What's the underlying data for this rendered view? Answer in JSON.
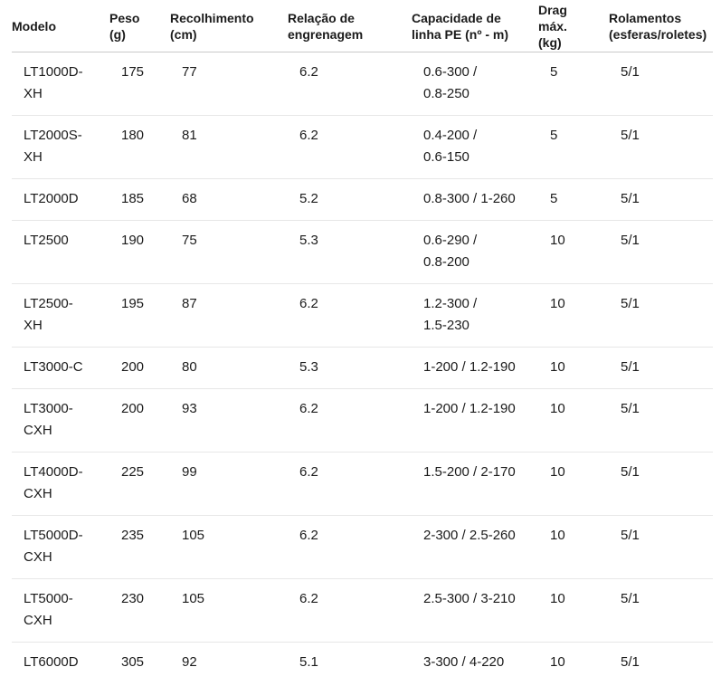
{
  "table": {
    "columns": [
      {
        "key": "modelo",
        "label": "Modelo"
      },
      {
        "key": "peso",
        "label": "Peso\n(g)"
      },
      {
        "key": "recolhimento",
        "label": "Recolhimento\n(cm)"
      },
      {
        "key": "relacao",
        "label": "Relação de\nengrenagem"
      },
      {
        "key": "capacidade",
        "label": "Capacidade de\nlinha PE (nº - m)"
      },
      {
        "key": "drag",
        "label": "Drag\nmáx.\n(kg)"
      },
      {
        "key": "rolamentos",
        "label": "Rolamentos\n(esferas/roletes)"
      }
    ],
    "rows": [
      {
        "modelo": "LT1000D-\nXH",
        "peso": "175",
        "recolhimento": "77",
        "relacao": "6.2",
        "capacidade": "0.6-300 /\n0.8-250",
        "drag": "5",
        "rolamentos": "5/1"
      },
      {
        "modelo": "LT2000S-\nXH",
        "peso": "180",
        "recolhimento": "81",
        "relacao": "6.2",
        "capacidade": "0.4-200 /\n0.6-150",
        "drag": "5",
        "rolamentos": "5/1"
      },
      {
        "modelo": "LT2000D",
        "peso": "185",
        "recolhimento": "68",
        "relacao": "5.2",
        "capacidade": "0.8-300 / 1-260",
        "drag": "5",
        "rolamentos": "5/1"
      },
      {
        "modelo": "LT2500",
        "peso": "190",
        "recolhimento": "75",
        "relacao": "5.3",
        "capacidade": "0.6-290 /\n0.8-200",
        "drag": "10",
        "rolamentos": "5/1"
      },
      {
        "modelo": "LT2500-\nXH",
        "peso": "195",
        "recolhimento": "87",
        "relacao": "6.2",
        "capacidade": "1.2-300 /\n1.5-230",
        "drag": "10",
        "rolamentos": "5/1"
      },
      {
        "modelo": "LT3000-C",
        "peso": "200",
        "recolhimento": "80",
        "relacao": "5.3",
        "capacidade": "1-200 / 1.2-190",
        "drag": "10",
        "rolamentos": "5/1"
      },
      {
        "modelo": "LT3000-\nCXH",
        "peso": "200",
        "recolhimento": "93",
        "relacao": "6.2",
        "capacidade": "1-200 / 1.2-190",
        "drag": "10",
        "rolamentos": "5/1"
      },
      {
        "modelo": "LT4000D-\nCXH",
        "peso": "225",
        "recolhimento": "99",
        "relacao": "6.2",
        "capacidade": "1.5-200 / 2-170",
        "drag": "10",
        "rolamentos": "5/1"
      },
      {
        "modelo": "LT5000D-\nCXH",
        "peso": "235",
        "recolhimento": "105",
        "relacao": "6.2",
        "capacidade": "2-300 / 2.5-260",
        "drag": "10",
        "rolamentos": "5/1"
      },
      {
        "modelo": "LT5000-\nCXH",
        "peso": "230",
        "recolhimento": "105",
        "relacao": "6.2",
        "capacidade": "2.5-300 / 3-210",
        "drag": "10",
        "rolamentos": "5/1"
      },
      {
        "modelo": "LT6000D",
        "peso": "305",
        "recolhimento": "92",
        "relacao": "5.1",
        "capacidade": "3-300 / 4-220",
        "drag": "10",
        "rolamentos": "5/1"
      }
    ]
  },
  "colors": {
    "background": "#ffffff",
    "text": "#1b1b1b",
    "header_divider": "#c9c9c9",
    "row_divider": "#e7e7e7"
  }
}
